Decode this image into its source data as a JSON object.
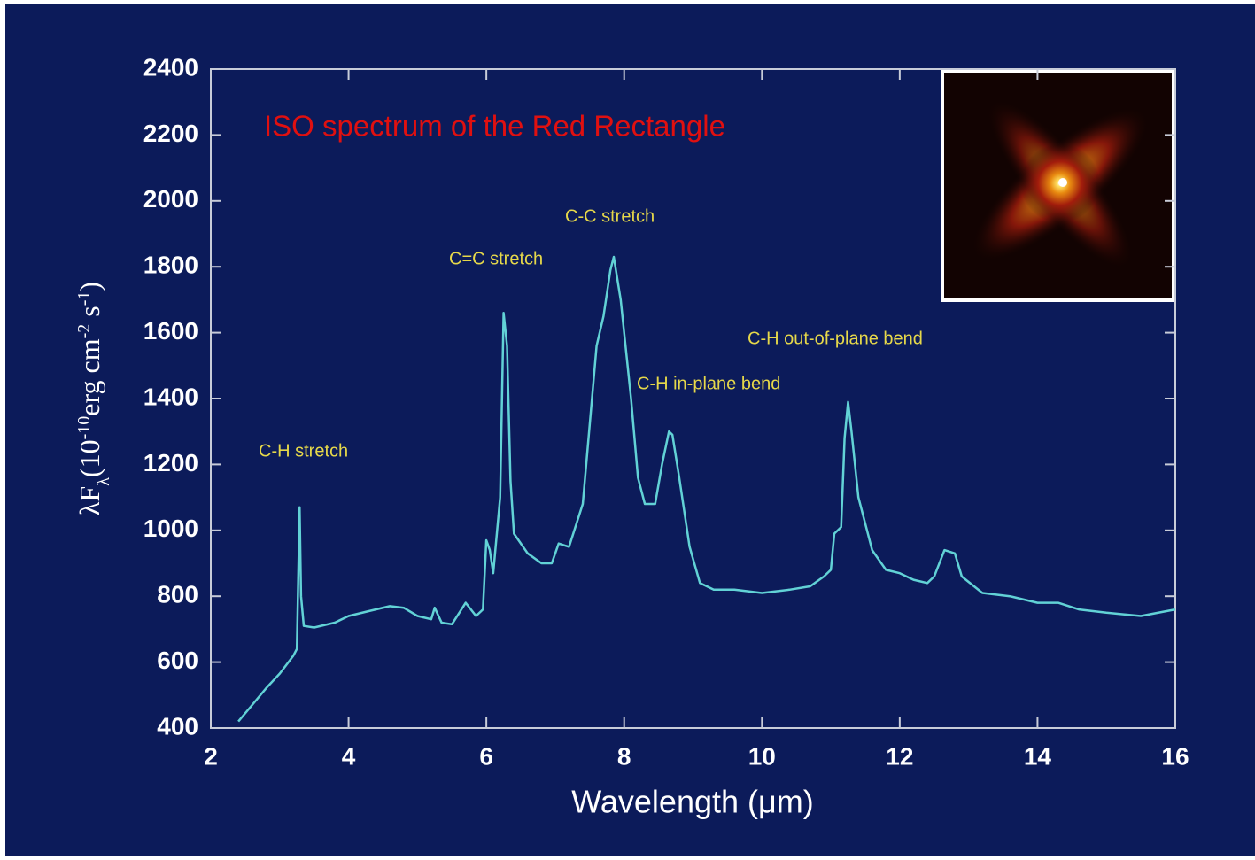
{
  "chart_data": {
    "type": "line",
    "title": "ISO spectrum of the Red Rectangle",
    "xlabel": "Wavelength (μm)",
    "ylabel": [
      "λF",
      "λ",
      "(10",
      "-10",
      "erg cm",
      "-2",
      " s",
      "-1",
      ")"
    ],
    "annotations": [
      "C-H stretch",
      "C=C stretch",
      "C-C stretch",
      "C-H in-plane bend",
      "C-H out-of-plane bend"
    ],
    "color": "#62d2d6",
    "xlim": [
      2,
      16
    ],
    "xticks": [
      2,
      4,
      6,
      8,
      10,
      12,
      14,
      16
    ],
    "ylim": [
      400,
      2400
    ],
    "yticks": [
      400,
      600,
      800,
      1000,
      1200,
      1400,
      1600,
      1800,
      2000,
      2200,
      2400
    ],
    "grid": false,
    "x": [
      2.4,
      2.6,
      2.8,
      3.0,
      3.2,
      3.25,
      3.29,
      3.31,
      3.35,
      3.5,
      3.8,
      4.0,
      4.3,
      4.6,
      4.8,
      5.0,
      5.2,
      5.25,
      5.35,
      5.5,
      5.7,
      5.85,
      5.95,
      6.0,
      6.05,
      6.1,
      6.2,
      6.25,
      6.3,
      6.35,
      6.4,
      6.6,
      6.8,
      6.95,
      7.05,
      7.2,
      7.4,
      7.6,
      7.7,
      7.8,
      7.85,
      7.95,
      8.1,
      8.2,
      8.3,
      8.45,
      8.55,
      8.65,
      8.7,
      8.8,
      8.95,
      9.1,
      9.3,
      9.6,
      10.0,
      10.4,
      10.7,
      10.9,
      11.0,
      11.05,
      11.15,
      11.2,
      11.25,
      11.3,
      11.4,
      11.6,
      11.8,
      12.0,
      12.2,
      12.4,
      12.5,
      12.65,
      12.8,
      12.9,
      13.2,
      13.6,
      14.0,
      14.3,
      14.6,
      15.0,
      15.5,
      16.0
    ],
    "values": [
      420,
      470,
      520,
      565,
      620,
      640,
      1070,
      800,
      710,
      705,
      720,
      740,
      755,
      770,
      765,
      740,
      730,
      765,
      720,
      715,
      780,
      740,
      760,
      970,
      940,
      870,
      1100,
      1660,
      1560,
      1150,
      990,
      930,
      900,
      900,
      960,
      950,
      1080,
      1560,
      1650,
      1790,
      1830,
      1700,
      1400,
      1160,
      1080,
      1080,
      1200,
      1300,
      1290,
      1160,
      950,
      840,
      820,
      820,
      810,
      820,
      830,
      860,
      880,
      990,
      1010,
      1280,
      1390,
      1300,
      1100,
      940,
      880,
      870,
      850,
      840,
      860,
      940,
      930,
      860,
      810,
      800,
      780,
      780,
      760,
      750,
      740,
      760
    ]
  }
}
